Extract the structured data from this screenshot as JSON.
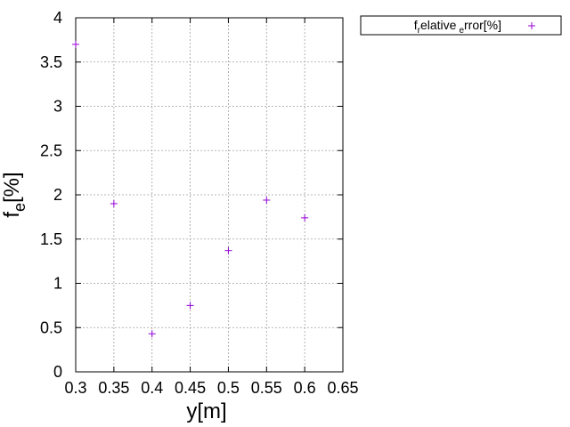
{
  "chart_data": {
    "type": "scatter",
    "xlabel": "y[m]",
    "ylabel": {
      "main": "f",
      "subscript": "e",
      "suffix": "[%]"
    },
    "xlim": [
      0.3,
      0.65
    ],
    "ylim": [
      0,
      4
    ],
    "xticks": [
      "0.3",
      "0.35",
      "0.4",
      "0.45",
      "0.5",
      "0.55",
      "0.6",
      "0.65"
    ],
    "yticks": [
      "0",
      "0.5",
      "1",
      "1.5",
      "2",
      "2.5",
      "3",
      "3.5",
      "4"
    ],
    "grid": true,
    "legend_position": "top-right-outside",
    "series": [
      {
        "name": {
          "f": "f",
          "sub1": "r",
          "mid": "elative",
          "sub2": "e",
          "end": "rror[%]"
        },
        "marker": "+",
        "color": "#9400d3",
        "x": [
          0.3,
          0.35,
          0.4,
          0.45,
          0.5,
          0.55,
          0.6
        ],
        "y": [
          3.7,
          1.9,
          0.43,
          0.75,
          1.37,
          1.94,
          1.74
        ]
      }
    ]
  }
}
